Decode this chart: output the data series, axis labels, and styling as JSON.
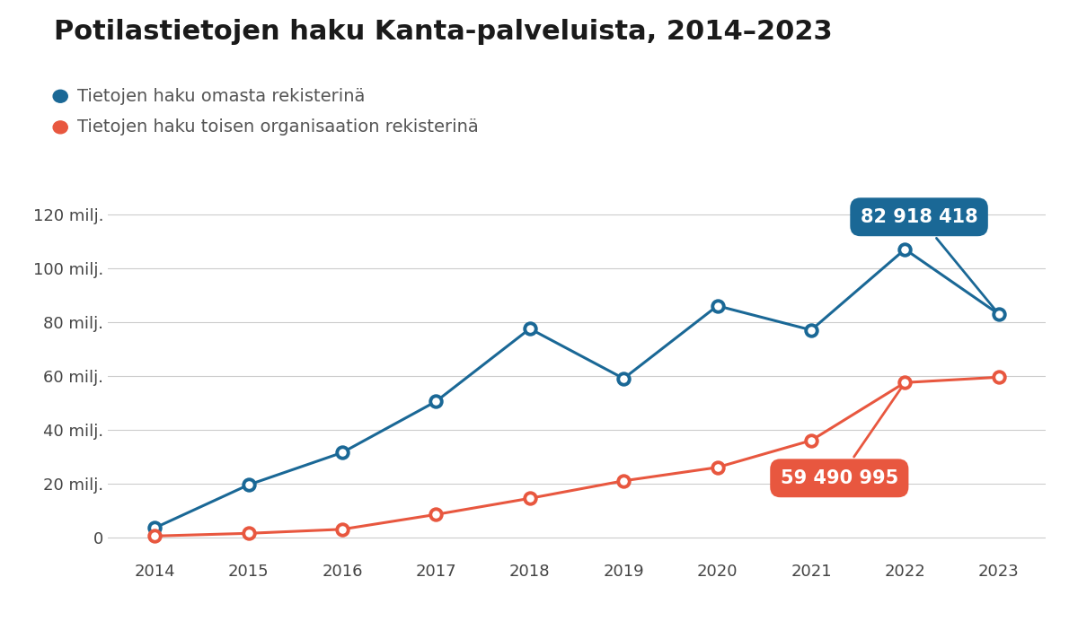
{
  "title": "Potilastietojen haku Kanta-palveluista, 2014–2023",
  "legend_blue": "Tietojen haku omasta rekisterinä",
  "legend_red": "Tietojen haku toisen organisaation rekisterinä",
  "years": [
    2014,
    2015,
    2016,
    2017,
    2018,
    2019,
    2020,
    2021,
    2022,
    2023
  ],
  "blue_values": [
    3.5,
    19.5,
    31.5,
    50.5,
    77.5,
    59.0,
    86.0,
    77.0,
    107.0,
    82.918418
  ],
  "red_values": [
    0.5,
    1.5,
    3.0,
    8.5,
    14.5,
    21.0,
    26.0,
    36.0,
    57.5,
    59.490995
  ],
  "blue_color": "#1a6896",
  "red_color": "#e8573f",
  "blue_label_value": "82 918 418",
  "red_label_value": "59 490 995",
  "ylim": [
    -8,
    135
  ],
  "yticks": [
    0,
    20,
    40,
    60,
    80,
    100,
    120
  ],
  "ytick_labels": [
    "0",
    "20 milj.",
    "40 milj.",
    "60 milj.",
    "80 milj.",
    "100 milj.",
    "120 milj."
  ],
  "background_color": "#ffffff",
  "title_fontsize": 22,
  "legend_fontsize": 14,
  "axis_fontsize": 13
}
